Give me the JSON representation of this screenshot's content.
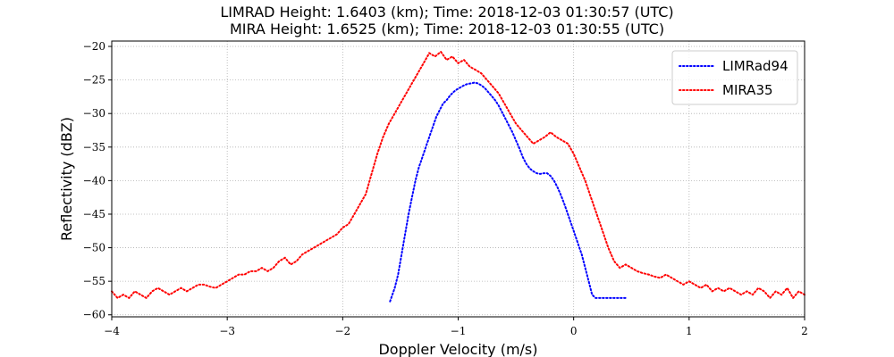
{
  "chart_data": {
    "type": "line",
    "title": "LIMRAD Height: 1.6403 (km); Time: 2018-12-03 01:30:57 (UTC)",
    "subtitle": "MIRA Height: 1.6525 (km); Time: 2018-12-03 01:30:55 (UTC)",
    "xlabel": "Doppler Velocity (m/s)",
    "ylabel": "Reflectivity (dBZ)",
    "xlim": [
      -4,
      2
    ],
    "ylim": [
      -60.3,
      -19.2
    ],
    "xticks": [
      "−4",
      "−3",
      "−2",
      "−1",
      "0",
      "1",
      "2"
    ],
    "xtick_values": [
      -4,
      -3,
      -2,
      -1,
      0,
      1,
      2
    ],
    "yticks": [
      "−20",
      "−25",
      "−30",
      "−35",
      "−40",
      "−45",
      "−50",
      "−55",
      "−60"
    ],
    "ytick_values": [
      -20,
      -25,
      -30,
      -35,
      -40,
      -45,
      -50,
      -55,
      -60
    ],
    "grid": true,
    "legend_position": "top-right",
    "series": [
      {
        "name": "LIMRad94",
        "color": "#0000ff",
        "style": "dotted",
        "x": [
          -1.59,
          -1.55,
          -1.52,
          -1.49,
          -1.46,
          -1.43,
          -1.4,
          -1.37,
          -1.34,
          -1.31,
          -1.28,
          -1.25,
          -1.22,
          -1.19,
          -1.16,
          -1.13,
          -1.1,
          -1.07,
          -1.04,
          -1.01,
          -0.98,
          -0.95,
          -0.92,
          -0.89,
          -0.86,
          -0.83,
          -0.8,
          -0.77,
          -0.74,
          -0.71,
          -0.68,
          -0.65,
          -0.62,
          -0.59,
          -0.56,
          -0.53,
          -0.5,
          -0.47,
          -0.44,
          -0.41,
          -0.38,
          -0.35,
          -0.32,
          -0.29,
          -0.26,
          -0.23,
          -0.2,
          -0.17,
          -0.14,
          -0.11,
          -0.08,
          -0.05,
          -0.02,
          0.01,
          0.04,
          0.07,
          0.1,
          0.13,
          0.16,
          0.19,
          0.22,
          0.25,
          0.28,
          0.31,
          0.34,
          0.37,
          0.4,
          0.43,
          0.46
        ],
        "values": [
          -58.0,
          -56.0,
          -54.0,
          -51.0,
          -48.0,
          -45.0,
          -42.5,
          -40.0,
          -38.0,
          -36.5,
          -35.0,
          -33.5,
          -32.0,
          -30.5,
          -29.5,
          -28.5,
          -28.0,
          -27.3,
          -26.8,
          -26.4,
          -26.1,
          -25.8,
          -25.6,
          -25.5,
          -25.4,
          -25.5,
          -25.8,
          -26.2,
          -26.8,
          -27.4,
          -28.0,
          -28.8,
          -29.8,
          -30.8,
          -31.8,
          -32.8,
          -34.0,
          -35.2,
          -36.5,
          -37.5,
          -38.2,
          -38.6,
          -38.9,
          -39.0,
          -38.9,
          -38.9,
          -39.3,
          -40.0,
          -41.0,
          -42.2,
          -43.5,
          -45.0,
          -46.5,
          -48.0,
          -49.5,
          -51.0,
          -53.0,
          -55.0,
          -57.0,
          -57.5,
          -57.5,
          -57.5,
          -57.5,
          -57.5,
          -57.5,
          -57.5,
          -57.5,
          -57.5,
          -57.5
        ]
      },
      {
        "name": "MIRA35",
        "color": "#ff0000",
        "style": "dotted",
        "x": [
          -4.0,
          -3.95,
          -3.9,
          -3.85,
          -3.8,
          -3.75,
          -3.7,
          -3.65,
          -3.6,
          -3.55,
          -3.5,
          -3.45,
          -3.4,
          -3.35,
          -3.3,
          -3.25,
          -3.2,
          -3.15,
          -3.1,
          -3.05,
          -3.0,
          -2.95,
          -2.9,
          -2.85,
          -2.8,
          -2.75,
          -2.7,
          -2.65,
          -2.6,
          -2.55,
          -2.5,
          -2.45,
          -2.4,
          -2.35,
          -2.3,
          -2.25,
          -2.2,
          -2.15,
          -2.1,
          -2.05,
          -2.0,
          -1.95,
          -1.9,
          -1.85,
          -1.8,
          -1.75,
          -1.7,
          -1.65,
          -1.6,
          -1.55,
          -1.5,
          -1.45,
          -1.4,
          -1.35,
          -1.3,
          -1.25,
          -1.2,
          -1.15,
          -1.1,
          -1.05,
          -1.0,
          -0.95,
          -0.9,
          -0.85,
          -0.8,
          -0.75,
          -0.7,
          -0.65,
          -0.6,
          -0.55,
          -0.5,
          -0.45,
          -0.4,
          -0.35,
          -0.3,
          -0.25,
          -0.2,
          -0.15,
          -0.1,
          -0.05,
          0.0,
          0.05,
          0.1,
          0.15,
          0.2,
          0.25,
          0.3,
          0.35,
          0.4,
          0.45,
          0.5,
          0.55,
          0.6,
          0.65,
          0.7,
          0.75,
          0.8,
          0.85,
          0.9,
          0.95,
          1.0,
          1.05,
          1.1,
          1.15,
          1.2,
          1.25,
          1.3,
          1.35,
          1.4,
          1.45,
          1.5,
          1.55,
          1.6,
          1.65,
          1.7,
          1.75,
          1.8,
          1.85,
          1.9,
          1.95,
          2.0
        ],
        "values": [
          -56.5,
          -57.5,
          -57.0,
          -57.5,
          -56.5,
          -57.0,
          -57.5,
          -56.5,
          -56.0,
          -56.5,
          -57.0,
          -56.5,
          -56.0,
          -56.5,
          -56.0,
          -55.5,
          -55.5,
          -55.8,
          -56.0,
          -55.5,
          -55.0,
          -54.5,
          -54.0,
          -54.0,
          -53.5,
          -53.5,
          -53.0,
          -53.5,
          -53.0,
          -52.0,
          -51.5,
          -52.5,
          -52.0,
          -51.0,
          -50.5,
          -50.0,
          -49.5,
          -49.0,
          -48.5,
          -48.0,
          -47.0,
          -46.5,
          -45.0,
          -43.5,
          -42.0,
          -39.0,
          -36.0,
          -33.5,
          -31.5,
          -30.0,
          -28.5,
          -27.0,
          -25.5,
          -24.0,
          -22.5,
          -21.0,
          -21.5,
          -20.8,
          -22.0,
          -21.5,
          -22.5,
          -22.0,
          -23.0,
          -23.5,
          -24.0,
          -25.0,
          -26.0,
          -27.0,
          -28.5,
          -30.0,
          -31.5,
          -32.5,
          -33.5,
          -34.5,
          -34.0,
          -33.5,
          -32.8,
          -33.5,
          -34.0,
          -34.5,
          -36.0,
          -38.0,
          -40.0,
          -42.5,
          -45.0,
          -47.5,
          -50.0,
          -52.0,
          -53.0,
          -52.5,
          -53.0,
          -53.5,
          -53.8,
          -54.0,
          -54.3,
          -54.5,
          -54.0,
          -54.5,
          -55.0,
          -55.5,
          -55.0,
          -55.5,
          -56.0,
          -55.5,
          -56.5,
          -56.0,
          -56.5,
          -56.0,
          -56.5,
          -57.0,
          -56.5,
          -57.0,
          -56.0,
          -56.5,
          -57.5,
          -56.5,
          -57.0,
          -56.0,
          -57.5,
          -56.5,
          -57.0
        ]
      }
    ]
  }
}
